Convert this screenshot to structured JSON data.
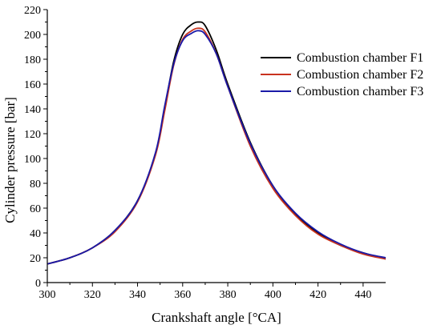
{
  "chart_data": {
    "type": "line",
    "title": "",
    "xlabel": "Crankshaft angle [°CA]",
    "ylabel": "Cylinder pressure [bar]",
    "xlim": [
      300,
      450
    ],
    "ylim": [
      0,
      220
    ],
    "xticks": [
      300,
      320,
      340,
      360,
      380,
      400,
      420,
      440
    ],
    "yticks": [
      0,
      20,
      40,
      60,
      80,
      100,
      120,
      140,
      160,
      180,
      200,
      220
    ],
    "grid": false,
    "legend_position": "top-right",
    "series": [
      {
        "name": "Combustion chamber F1",
        "color": "#000000",
        "points": [
          [
            300,
            15
          ],
          [
            310,
            20
          ],
          [
            320,
            28
          ],
          [
            330,
            42
          ],
          [
            340,
            66
          ],
          [
            348,
            104
          ],
          [
            352,
            140
          ],
          [
            356,
            178
          ],
          [
            360,
            200
          ],
          [
            364,
            208
          ],
          [
            367,
            210
          ],
          [
            370,
            207
          ],
          [
            375,
            187
          ],
          [
            380,
            160
          ],
          [
            390,
            113
          ],
          [
            400,
            78
          ],
          [
            410,
            55
          ],
          [
            420,
            40
          ],
          [
            430,
            30
          ],
          [
            440,
            24
          ],
          [
            450,
            19
          ]
        ]
      },
      {
        "name": "Combustion chamber F2",
        "color": "#c8321e",
        "points": [
          [
            300,
            15
          ],
          [
            310,
            20
          ],
          [
            320,
            28
          ],
          [
            330,
            41
          ],
          [
            340,
            65
          ],
          [
            348,
            103
          ],
          [
            352,
            138
          ],
          [
            356,
            175
          ],
          [
            360,
            196
          ],
          [
            364,
            203
          ],
          [
            367,
            205
          ],
          [
            370,
            202
          ],
          [
            375,
            184
          ],
          [
            380,
            158
          ],
          [
            390,
            110
          ],
          [
            400,
            76
          ],
          [
            410,
            54
          ],
          [
            420,
            39
          ],
          [
            430,
            30
          ],
          [
            440,
            23
          ],
          [
            450,
            19
          ]
        ]
      },
      {
        "name": "Combustion chamber F3",
        "color": "#1a1aa8",
        "points": [
          [
            300,
            15
          ],
          [
            310,
            20
          ],
          [
            320,
            28
          ],
          [
            330,
            42
          ],
          [
            340,
            66
          ],
          [
            348,
            105
          ],
          [
            352,
            142
          ],
          [
            356,
            176
          ],
          [
            360,
            195
          ],
          [
            364,
            201
          ],
          [
            367,
            203
          ],
          [
            370,
            200
          ],
          [
            375,
            184
          ],
          [
            380,
            158
          ],
          [
            390,
            112
          ],
          [
            400,
            78
          ],
          [
            410,
            56
          ],
          [
            420,
            41
          ],
          [
            430,
            31
          ],
          [
            440,
            24
          ],
          [
            450,
            20
          ]
        ]
      }
    ]
  }
}
